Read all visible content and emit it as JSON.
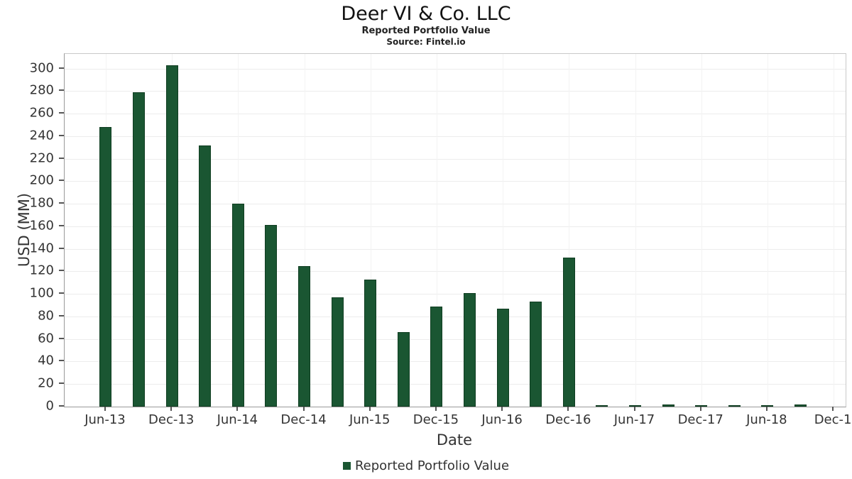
{
  "header": {
    "title": "Deer VI & Co. LLC",
    "subtitle": "Reported Portfolio Value",
    "source": "Source: Fintel.io"
  },
  "chart_data": {
    "type": "bar",
    "title": "Deer VI & Co. LLC",
    "subtitle": "Reported Portfolio Value",
    "source": "Source: Fintel.io",
    "xlabel": "Date",
    "ylabel": "USD (MM)",
    "legend_label": "Reported Portfolio Value",
    "legend_position": "bottom-center",
    "grid": true,
    "ylim": [
      0,
      313
    ],
    "yticks": [
      0,
      20,
      40,
      60,
      80,
      100,
      120,
      140,
      160,
      180,
      200,
      220,
      240,
      260,
      280,
      300
    ],
    "bar_color": "#1a5632",
    "bar_edge_color": "#0f3d21",
    "categories": [
      "Jun-13",
      "Sep-13",
      "Dec-13",
      "Mar-14",
      "Jun-14",
      "Sep-14",
      "Dec-14",
      "Mar-15",
      "Jun-15",
      "Sep-15",
      "Dec-15",
      "Mar-16",
      "Jun-16",
      "Sep-16",
      "Dec-16",
      "Mar-17",
      "Jun-17",
      "Sep-17",
      "Dec-17",
      "Mar-18",
      "Jun-18",
      "Sep-18"
    ],
    "values": [
      248,
      279,
      303,
      232,
      180,
      161,
      125,
      97,
      113,
      66,
      89,
      101,
      87,
      93,
      132,
      0.5,
      1.5,
      2,
      1.5,
      1.5,
      1.5,
      2
    ],
    "xtick_labels": [
      "Jun-13",
      "Dec-13",
      "Jun-14",
      "Dec-14",
      "Jun-15",
      "Dec-15",
      "Jun-16",
      "Dec-16",
      "Jun-17",
      "Dec-17",
      "Jun-18",
      "Dec-1"
    ]
  }
}
